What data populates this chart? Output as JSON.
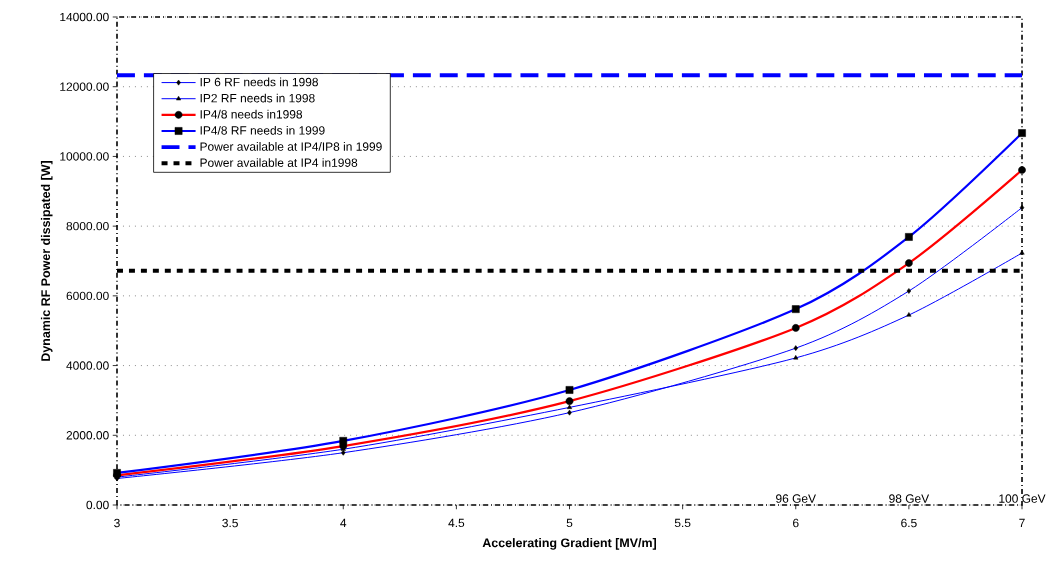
{
  "chart_data": {
    "type": "line",
    "xlabel": "Accelerating Gradient [MV/m]",
    "ylabel": "Dynamic RF Power dissipated [W]",
    "x": [
      3,
      4,
      5,
      6,
      6.5,
      7
    ],
    "series": [
      {
        "name": "IP 6 RF needs in 1998",
        "color": "#0000ff",
        "marker": "diamond",
        "values": [
          760,
          1500,
          2650,
          4500,
          6140,
          8530
        ]
      },
      {
        "name": "IP2 RF needs in 1998",
        "color": "#0000ff",
        "marker": "triangle",
        "values": [
          800,
          1600,
          2800,
          4220,
          5450,
          7230
        ]
      },
      {
        "name": "IP4/8 needs in1998",
        "color": "#ff0000",
        "marker": "circle",
        "values": [
          850,
          1690,
          2980,
          5080,
          6940,
          9610
        ]
      },
      {
        "name": "IP4/8 RF needs in 1999",
        "color": "#0000ff",
        "marker": "square",
        "values": [
          920,
          1840,
          3300,
          5620,
          7690,
          10670
        ]
      }
    ],
    "ref_lines": [
      {
        "axis": "y",
        "value": 12330,
        "label": "Power available at IP4/IP8 in 1999",
        "color": "#0000ff",
        "line_style": "dashed"
      },
      {
        "axis": "y",
        "value": 6720,
        "label": "Power available at IP4 in1998",
        "color": "#000000",
        "line_style": "dotted"
      }
    ],
    "annotations": [
      "96 GeV",
      "98 GeV",
      "100 GeV"
    ],
    "xlim": [
      3,
      7
    ],
    "ylim": [
      0,
      14000
    ],
    "xticks": [
      3,
      3.5,
      4,
      4.5,
      5,
      5.5,
      6,
      6.5,
      7
    ],
    "yticks": [
      {
        "value": 0,
        "label": "0.00"
      },
      {
        "value": 2000,
        "label": "2000.00"
      },
      {
        "value": 4000,
        "label": "4000.00"
      },
      {
        "value": 6000,
        "label": "6000.00"
      },
      {
        "value": 8000,
        "label": "8000.00"
      },
      {
        "value": 10000,
        "label": "10000.00"
      },
      {
        "value": 12000,
        "label": "12000.00"
      },
      {
        "value": 14000,
        "label": "14000.00"
      }
    ],
    "grid": "y",
    "legend": "top left"
  }
}
